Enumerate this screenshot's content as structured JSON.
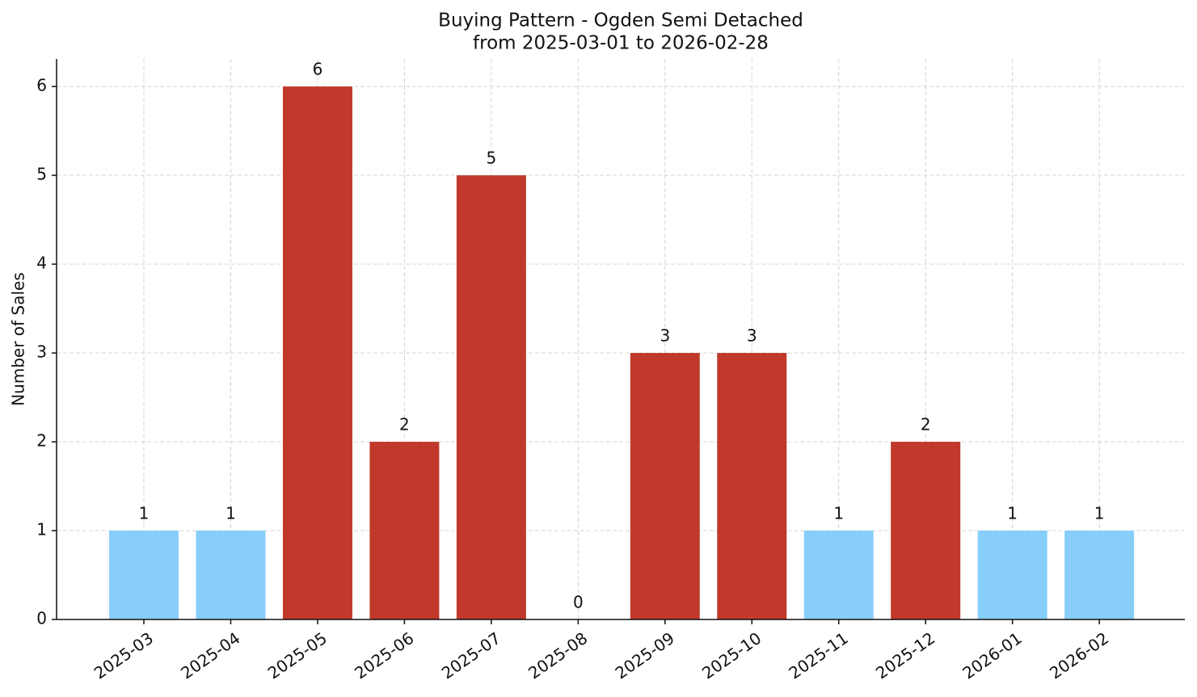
{
  "chart_data": {
    "type": "bar",
    "title": "Buying Pattern - Ogden Semi Detached",
    "subtitle": "from 2025-03-01 to 2026-02-28",
    "y_label": "Number of Sales",
    "categories": [
      "2025-03",
      "2025-04",
      "2025-05",
      "2025-06",
      "2025-07",
      "2025-08",
      "2025-09",
      "2025-10",
      "2025-11",
      "2025-12",
      "2026-01",
      "2026-02"
    ],
    "values": [
      1,
      1,
      6,
      2,
      5,
      0,
      3,
      3,
      1,
      2,
      1,
      1
    ],
    "colors": [
      "#87cefa",
      "#87cefa",
      "#c0392b",
      "#c0392b",
      "#c0392b",
      "#87cefa",
      "#c0392b",
      "#c0392b",
      "#87cefa",
      "#c0392b",
      "#87cefa",
      "#87cefa"
    ],
    "ylim": [
      0,
      6.31
    ],
    "yticks": [
      0,
      1,
      2,
      3,
      4,
      5,
      6
    ],
    "grid": true
  }
}
